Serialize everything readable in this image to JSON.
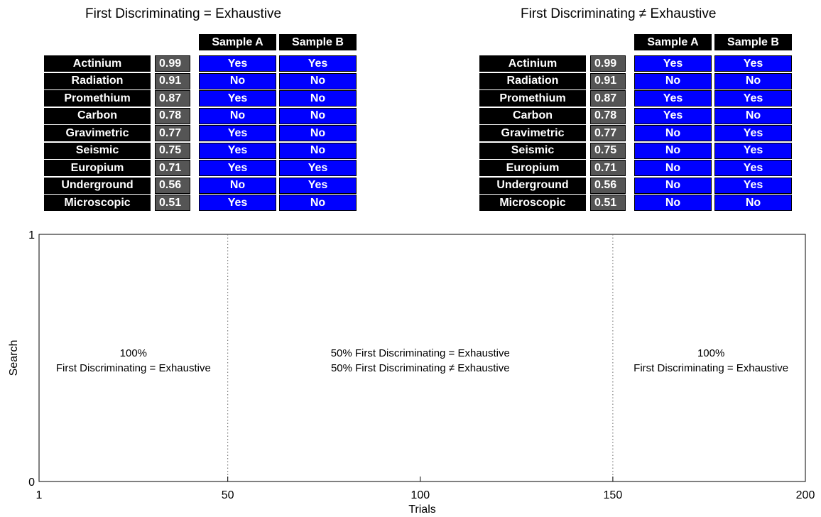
{
  "tables": [
    {
      "title": "First Discriminating = Exhaustive",
      "headers": [
        "Sample A",
        "Sample B"
      ],
      "rows": [
        {
          "cue": "Actinium",
          "validity": "0.99",
          "a": "Yes",
          "b": "Yes"
        },
        {
          "cue": "Radiation",
          "validity": "0.91",
          "a": "No",
          "b": "No"
        },
        {
          "cue": "Promethium",
          "validity": "0.87",
          "a": "Yes",
          "b": "No"
        },
        {
          "cue": "Carbon",
          "validity": "0.78",
          "a": "No",
          "b": "No"
        },
        {
          "cue": "Gravimetric",
          "validity": "0.77",
          "a": "Yes",
          "b": "No"
        },
        {
          "cue": "Seismic",
          "validity": "0.75",
          "a": "Yes",
          "b": "No"
        },
        {
          "cue": "Europium",
          "validity": "0.71",
          "a": "Yes",
          "b": "Yes"
        },
        {
          "cue": "Underground",
          "validity": "0.56",
          "a": "No",
          "b": "Yes"
        },
        {
          "cue": "Microscopic",
          "validity": "0.51",
          "a": "Yes",
          "b": "No"
        }
      ]
    },
    {
      "title": "First Discriminating ≠ Exhaustive",
      "headers": [
        "Sample A",
        "Sample B"
      ],
      "rows": [
        {
          "cue": "Actinium",
          "validity": "0.99",
          "a": "Yes",
          "b": "Yes"
        },
        {
          "cue": "Radiation",
          "validity": "0.91",
          "a": "No",
          "b": "No"
        },
        {
          "cue": "Promethium",
          "validity": "0.87",
          "a": "Yes",
          "b": "Yes"
        },
        {
          "cue": "Carbon",
          "validity": "0.78",
          "a": "Yes",
          "b": "No"
        },
        {
          "cue": "Gravimetric",
          "validity": "0.77",
          "a": "No",
          "b": "Yes"
        },
        {
          "cue": "Seismic",
          "validity": "0.75",
          "a": "No",
          "b": "Yes"
        },
        {
          "cue": "Europium",
          "validity": "0.71",
          "a": "No",
          "b": "Yes"
        },
        {
          "cue": "Underground",
          "validity": "0.56",
          "a": "No",
          "b": "Yes"
        },
        {
          "cue": "Microscopic",
          "validity": "0.51",
          "a": "No",
          "b": "No"
        }
      ]
    }
  ],
  "colors": {
    "cue_bg": "#000000",
    "validity_bg": "#555555",
    "answer_bg": "#0000ff",
    "text": "#ffffff"
  },
  "plot": {
    "xlabel": "Trials",
    "ylabel": "Search",
    "xlim": [
      1,
      200
    ],
    "ylim": [
      0,
      1
    ],
    "xticks": [
      1,
      50,
      100,
      150,
      200
    ],
    "yticks": [
      0,
      1
    ],
    "dividers": [
      50,
      150
    ],
    "regions": [
      {
        "x_center": 25.5,
        "lines": [
          "100%",
          "First Discriminating = Exhaustive"
        ]
      },
      {
        "x_center": 100,
        "lines": [
          "50% First Discriminating = Exhaustive",
          "50% First Discriminating ≠ Exhaustive"
        ]
      },
      {
        "x_center": 175.5,
        "lines": [
          "100%",
          "First Discriminating = Exhaustive"
        ]
      }
    ]
  }
}
